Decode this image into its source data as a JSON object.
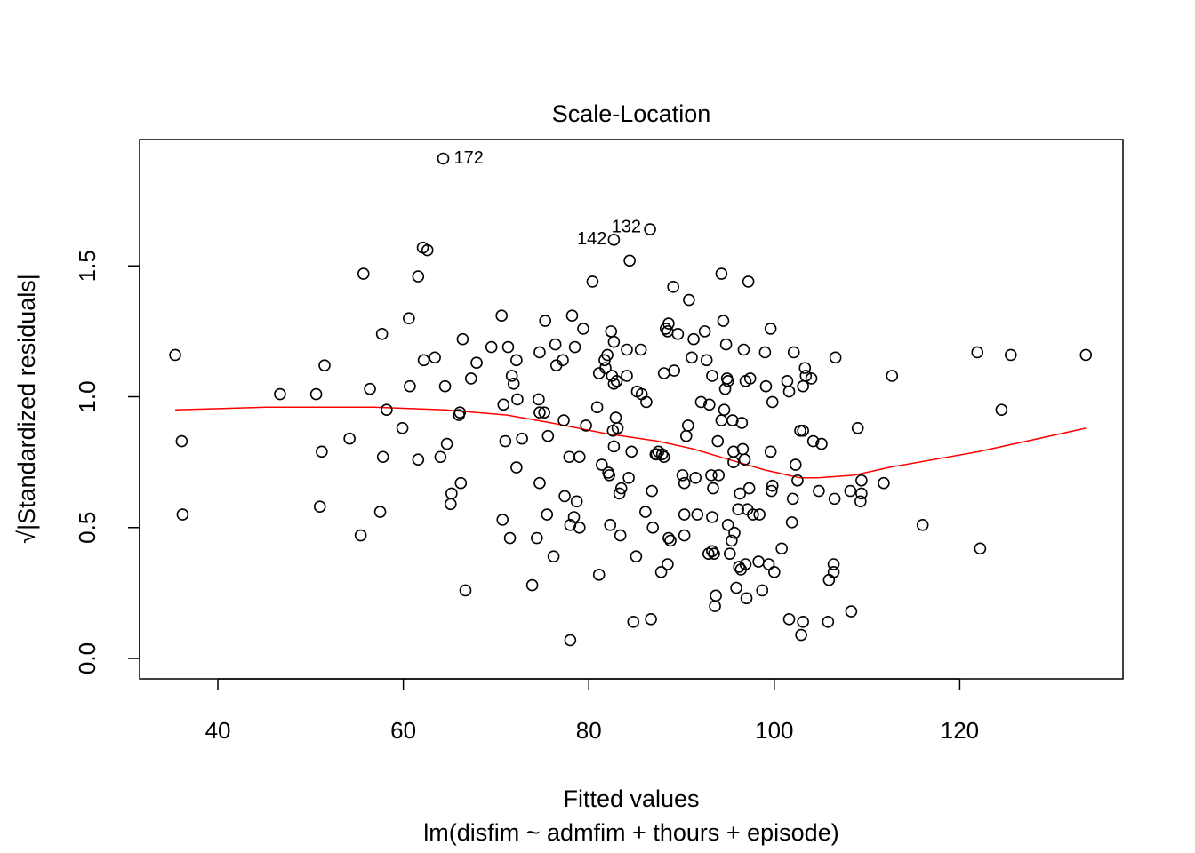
{
  "chart_data": {
    "type": "scatter",
    "title": "Scale-Location",
    "xlabel": "Fitted values",
    "subtitle": "lm(disfim ~ admfim + thours + episode)",
    "ylabel": "√|Standardized residuals|",
    "xlim": [
      31.56,
      137.6
    ],
    "ylim": [
      -0.078,
      1.983
    ],
    "xticks": [
      40,
      60,
      80,
      100,
      120
    ],
    "yticks": [
      {
        "value": 0,
        "label": "0.0"
      },
      0.5,
      {
        "value": 1,
        "label": "1.0"
      },
      1.5
    ],
    "color": "#000000",
    "x": [
      35.4,
      36.1,
      36.2,
      46.7,
      50.6,
      51.2,
      51.0,
      51.5,
      54.2,
      55.4,
      55.7,
      56.4,
      57.5,
      57.7,
      57.8,
      58.2,
      59.9,
      60.6,
      60.7,
      61.6,
      61.6,
      62.1,
      62.2,
      62.6,
      63.4,
      64.0,
      64.5,
      64.7,
      65.1,
      65.2,
      66.0,
      66.1,
      66.2,
      66.4,
      66.7,
      67.3,
      67.9,
      69.5,
      70.6,
      70.7,
      70.8,
      71.0,
      71.3,
      71.5,
      71.7,
      71.9,
      72.2,
      72.2,
      72.3,
      72.8,
      73.9,
      74.4,
      74.7,
      74.7,
      74.6,
      74.7,
      75.2,
      75.3,
      75.5,
      75.6,
      76.2,
      76.4,
      76.5,
      77.2,
      77.3,
      77.4,
      77.9,
      78.0,
      78.2,
      78.4,
      78.5,
      78.7,
      79.0,
      79.0,
      79.4,
      79.7,
      80.4,
      80.9,
      81.1,
      81.1,
      81.4,
      81.7,
      81.8,
      82.0,
      82.1,
      82.2,
      82.3,
      82.4,
      82.5,
      82.6,
      82.7,
      82.7,
      82.7,
      82.7,
      82.9,
      83.0,
      83.1,
      83.3,
      83.4,
      83.5,
      84.1,
      84.1,
      84.3,
      84.4,
      84.6,
      84.8,
      85.1,
      85.2,
      85.6,
      85.7,
      86.1,
      86.2,
      86.7,
      86.8,
      86.9,
      87.2,
      87.3,
      87.5,
      87.8,
      87.9,
      88.1,
      88.1,
      88.3,
      88.5,
      88.5,
      88.6,
      88.6,
      88.8,
      89.1,
      89.2,
      89.6,
      90.1,
      90.3,
      90.3,
      90.3,
      90.5,
      90.7,
      90.8,
      91.1,
      91.3,
      91.5,
      91.7,
      92.1,
      92.5,
      92.7,
      92.9,
      93.0,
      93.2,
      93.3,
      93.3,
      93.4,
      93.5,
      93.6,
      93.3,
      93.7,
      93.9,
      94.0,
      94.3,
      94.3,
      94.5,
      94.6,
      94.7,
      94.8,
      94.9,
      95.0,
      95.0,
      95.2,
      95.4,
      95.5,
      95.6,
      95.6,
      95.7,
      95.9,
      96.1,
      96.2,
      96.3,
      96.4,
      96.5,
      96.6,
      96.7,
      96.8,
      96.9,
      96.9,
      97.0,
      97.1,
      97.2,
      97.3,
      97.4,
      97.7,
      98.3,
      98.4,
      98.7,
      99.0,
      99.1,
      99.4,
      99.6,
      99.6,
      99.7,
      99.8,
      99.8,
      100.0,
      100.8,
      101.6,
      101.4,
      101.6,
      101.9,
      102.0,
      102.1,
      102.3,
      102.8,
      102.5,
      103.1,
      102.9,
      103.1,
      103.1,
      103.3,
      103.4,
      104.0,
      104.2,
      104.8,
      105.1,
      105.9,
      105.8,
      106.4,
      106.4,
      106.5,
      106.6,
      108.3,
      108.2,
      109.0,
      109.3,
      109.4,
      109.4,
      111.8,
      112.7,
      116.0,
      121.9,
      122.2,
      124.5,
      125.5,
      133.6,
      64.3,
      86.6,
      78.0
    ],
    "y": [
      1.16,
      0.83,
      0.55,
      1.01,
      1.01,
      0.79,
      0.58,
      1.12,
      0.84,
      0.47,
      1.47,
      1.03,
      0.56,
      1.24,
      0.77,
      0.95,
      0.88,
      1.3,
      1.04,
      0.76,
      1.46,
      1.57,
      1.14,
      1.56,
      1.15,
      0.77,
      1.04,
      0.82,
      0.59,
      0.63,
      0.93,
      0.94,
      0.67,
      1.22,
      0.26,
      1.07,
      1.13,
      1.19,
      1.31,
      0.53,
      0.97,
      0.83,
      1.19,
      0.46,
      1.08,
      1.05,
      1.14,
      0.73,
      0.99,
      0.84,
      0.28,
      0.46,
      0.67,
      1.17,
      0.99,
      0.94,
      0.94,
      1.29,
      0.55,
      0.85,
      0.39,
      1.2,
      1.12,
      1.14,
      0.91,
      0.62,
      0.77,
      0.51,
      1.31,
      0.54,
      1.19,
      0.6,
      0.5,
      0.77,
      1.26,
      0.89,
      1.44,
      0.96,
      0.32,
      1.09,
      0.74,
      1.14,
      1.11,
      1.16,
      0.71,
      0.7,
      0.51,
      1.25,
      1.08,
      0.87,
      1.05,
      0.81,
      1.21,
      1.6,
      0.92,
      1.06,
      0.88,
      0.63,
      0.47,
      0.65,
      1.18,
      1.08,
      0.69,
      1.52,
      0.79,
      0.14,
      0.39,
      1.02,
      1.18,
      1.01,
      0.56,
      0.98,
      0.15,
      0.64,
      0.5,
      0.78,
      0.78,
      0.79,
      0.33,
      0.78,
      1.09,
      0.77,
      1.26,
      1.25,
      0.36,
      1.28,
      0.46,
      0.45,
      1.42,
      1.1,
      1.24,
      0.7,
      0.47,
      0.55,
      0.67,
      0.85,
      0.89,
      1.37,
      1.15,
      1.22,
      0.69,
      0.55,
      0.98,
      1.25,
      1.14,
      0.4,
      0.97,
      0.7,
      1.08,
      0.41,
      0.65,
      0.4,
      0.2,
      0.54,
      0.24,
      0.83,
      0.7,
      0.91,
      1.47,
      1.29,
      0.95,
      1.03,
      1.2,
      1.07,
      1.06,
      0.51,
      0.4,
      0.45,
      0.91,
      0.79,
      0.75,
      0.48,
      0.27,
      0.57,
      0.35,
      0.63,
      0.34,
      0.9,
      0.8,
      1.18,
      0.76,
      0.36,
      1.06,
      0.23,
      0.57,
      1.44,
      0.65,
      1.07,
      0.55,
      0.37,
      0.55,
      0.26,
      1.17,
      1.04,
      0.36,
      1.26,
      0.79,
      0.64,
      0.98,
      0.66,
      0.33,
      0.42,
      0.15,
      1.06,
      1.02,
      0.52,
      0.61,
      1.17,
      0.74,
      0.87,
      0.68,
      0.14,
      0.09,
      0.87,
      1.04,
      1.11,
      1.08,
      1.07,
      0.83,
      0.64,
      0.82,
      0.3,
      0.14,
      0.36,
      0.33,
      0.61,
      1.15,
      0.18,
      0.64,
      0.88,
      0.6,
      0.68,
      0.63,
      0.67,
      1.08,
      0.51,
      1.17,
      0.42,
      0.95,
      1.16,
      1.16,
      1.91,
      1.64,
      0.07
    ],
    "loess": {
      "color": "#ff0000",
      "x": [
        35.4,
        45.3,
        56.8,
        64.5,
        71.2,
        76.0,
        81.7,
        87.5,
        91.3,
        95.1,
        99.0,
        102.8,
        104.7,
        108.6,
        112.4,
        122.0,
        133.6
      ],
      "y": [
        0.95,
        0.96,
        0.96,
        0.95,
        0.93,
        0.9,
        0.86,
        0.83,
        0.8,
        0.76,
        0.72,
        0.69,
        0.69,
        0.7,
        0.73,
        0.79,
        0.88
      ]
    },
    "annotations": [
      {
        "text": "172",
        "x": 64.3,
        "y": 1.91
      },
      {
        "text": "142",
        "x": 82.7,
        "y": 1.6
      },
      {
        "text": "132",
        "x": 86.6,
        "y": 1.64
      }
    ]
  }
}
